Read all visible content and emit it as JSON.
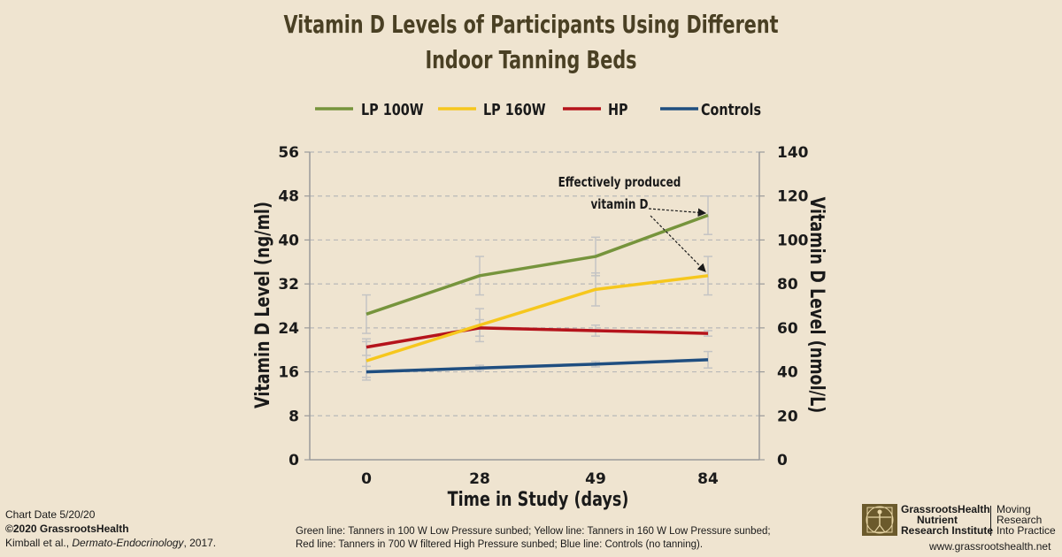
{
  "title_line1": "Vitamin D Levels of Participants Using Different",
  "title_line2": "Indoor Tanning Beds",
  "chart_data": {
    "type": "line",
    "title": "Vitamin D Levels of Participants Using Different Indoor Tanning Beds",
    "categories": [
      "0",
      "28",
      "49",
      "84"
    ],
    "xlabel": "Time in Study (days)",
    "ylabel": "Vitamin D Level (ng/ml)",
    "ylabel_right": "Vitamin D Level (nmol/L)",
    "ylim": [
      0,
      56
    ],
    "ylim_right": [
      0,
      140
    ],
    "yticks": [
      "0",
      "8",
      "16",
      "24",
      "32",
      "40",
      "48",
      "56"
    ],
    "yticks_right": [
      "0",
      "20",
      "40",
      "60",
      "80",
      "100",
      "120",
      "140"
    ],
    "grid": "horizontal dashed",
    "legend_position": "top",
    "series": [
      {
        "name": "LP 100W",
        "color": "#76943c",
        "values": [
          26.5,
          33.5,
          37,
          44.5
        ],
        "errors": [
          3.5,
          3.5,
          3.5,
          3.5
        ]
      },
      {
        "name": "LP 160W",
        "color": "#f6c71d",
        "values": [
          18,
          24.5,
          31,
          33.5
        ],
        "errors": [
          3.5,
          3,
          3,
          3.5
        ]
      },
      {
        "name": "HP",
        "color": "#b5131b",
        "values": [
          20.5,
          24,
          23.5,
          23
        ],
        "errors": [
          1.5,
          1.5,
          1,
          0.5
        ]
      },
      {
        "name": "Controls",
        "color": "#1f4e80",
        "values": [
          16,
          16.7,
          17.4,
          18.2
        ],
        "errors": [
          1,
          0.5,
          0.5,
          1.5
        ]
      }
    ],
    "annotation": "Effectively produced vitamin D"
  },
  "annotation_line1": "Effectively produced",
  "annotation_line2": "vitamin D",
  "footer": {
    "chart_date": "Chart Date 5/20/20",
    "copyright": "©2020 GrassrootsHealth",
    "citation_authors": "Kimball et al., ",
    "citation_journal": "Dermato-Endocrinology",
    "citation_year": ", 2017.",
    "note_line1": "Green line: Tanners in 100 W Low Pressure sunbed; Yellow line: Tanners in 160 W Low Pressure sunbed;",
    "note_line2": "Red line: Tanners in 700 W filtered High Pressure sunbed; Blue line: Controls (no tanning).",
    "org_line1": "GrassrootsHealth",
    "org_line2": "Nutrient",
    "org_line3": "Research Institute",
    "tagline1": "Moving",
    "tagline2": "Research",
    "tagline3": "Into Practice",
    "website": "www.grassrootshealth.net"
  }
}
